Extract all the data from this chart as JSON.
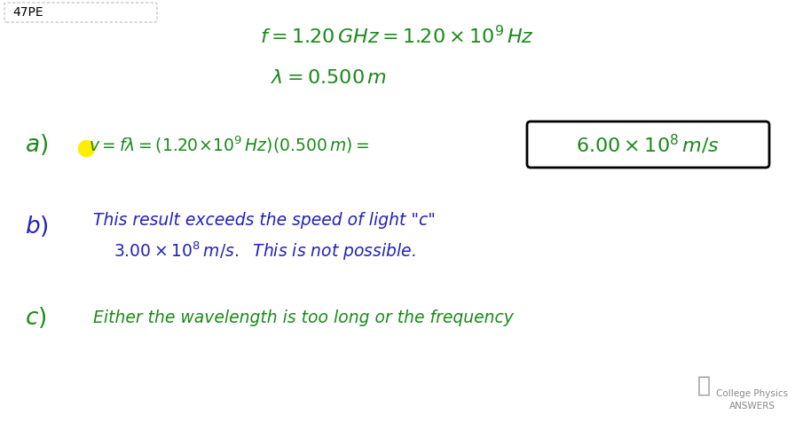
{
  "background_color": "#ffffff",
  "green_color": "#1a8a1a",
  "blue_color": "#2222bb",
  "yellow_color": "#ffee00",
  "title_box_text": "47PE",
  "watermark_line1": "College Physics",
  "watermark_line2": "ANSWERS",
  "fig_w": 8.96,
  "fig_h": 5.03,
  "dpi": 100
}
